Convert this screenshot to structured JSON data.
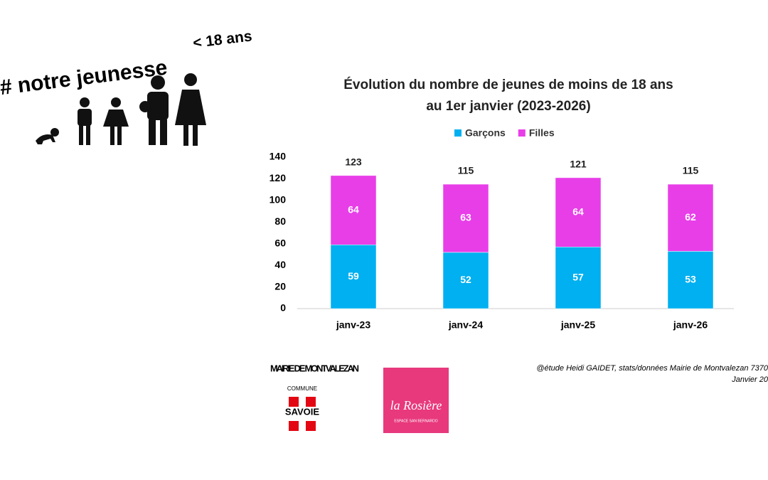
{
  "header": {
    "title": "# notre jeunesse",
    "subtitle": "< 18 ans"
  },
  "chart_data": {
    "type": "stacked_bar",
    "title": [
      "Évolution du nombre de jeunes de moins de 18 ans",
      "au 1er janvier (2023-2026)"
    ],
    "categories": [
      "janv-23",
      "janv-24",
      "janv-25",
      "janv-26"
    ],
    "series": [
      {
        "name": "Garçons",
        "color": "#00b0f0",
        "values": [
          59,
          52,
          57,
          53
        ]
      },
      {
        "name": "Filles",
        "color": "#e83ee8",
        "values": [
          64,
          63,
          64,
          62
        ]
      }
    ],
    "totals": [
      123,
      115,
      121,
      115
    ],
    "ylim": [
      0,
      140
    ],
    "yticks": [
      0,
      20,
      40,
      60,
      80,
      100,
      120,
      140
    ],
    "grid": false,
    "legend": "top"
  },
  "footer": {
    "mairie": "MAIRIE DE MONTVALEZAN",
    "commune": "COMMUNE",
    "savoie": "SAVOIE",
    "rosiere": "la Rosière",
    "rosiere_sub": "ESPACE SAN BERNARDO",
    "credit": [
      "@étude Heidi GAIDET, stats/données Mairie de Montvalezan 7370",
      "Janvier 20"
    ]
  }
}
